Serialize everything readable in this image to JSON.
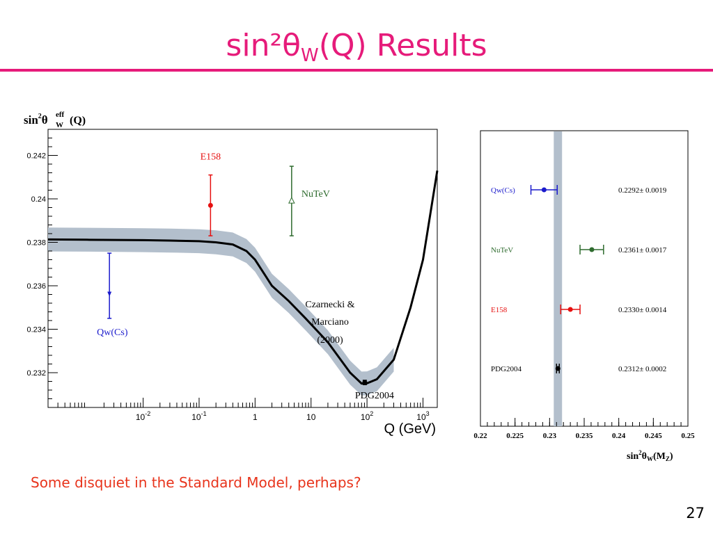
{
  "slide": {
    "title_prefix": "sin²θ",
    "title_sub": "W",
    "title_suffix": "(Q) Results",
    "subtitle": "Some disquiet in the Standard Model, perhaps?",
    "page_number": "27"
  },
  "colors": {
    "accent": "#e61b7a",
    "subtitle": "#e8341c",
    "band": "#b3bfcc",
    "qwcs": "#1a1acc",
    "nutev": "#2e6b2e",
    "e158": "#e61010",
    "pdg": "#000000"
  },
  "chart_data": [
    {
      "type": "line",
      "ylabel_main": "sin",
      "ylabel_sup": "2",
      "ylabel_theta": "θ",
      "ylabel_eff": "eff",
      "ylabel_W": "W",
      "ylabel_arg": "(Q)",
      "xlabel": "Q (GeV)",
      "xscale": "log",
      "xlim": [
        0.0002,
        1800
      ],
      "ylim": [
        0.2304,
        0.2432
      ],
      "yticks": [
        {
          "value": 0.242,
          "label": "0.242"
        },
        {
          "value": 0.24,
          "label": "0.24"
        },
        {
          "value": 0.238,
          "label": "0.238"
        },
        {
          "value": 0.236,
          "label": "0.236"
        },
        {
          "value": 0.234,
          "label": "0.234"
        },
        {
          "value": 0.232,
          "label": "0.232"
        }
      ],
      "xticks": [
        {
          "value": 0.01,
          "base": "10",
          "exp": "-2"
        },
        {
          "value": 0.1,
          "base": "10",
          "exp": "-1"
        },
        {
          "value": 1,
          "base": "1",
          "exp": ""
        },
        {
          "value": 10,
          "base": "10",
          "exp": ""
        },
        {
          "value": 100,
          "base": "10",
          "exp": "2"
        },
        {
          "value": 1000,
          "base": "10",
          "exp": "3"
        }
      ],
      "curve": {
        "name": "Czarnecki & Marciano (2000)",
        "label_lines": [
          "Czarnecki &",
          "Marciano",
          "(2000)"
        ],
        "x": [
          0.0002,
          0.001,
          0.01,
          0.03,
          0.1,
          0.2,
          0.4,
          0.7,
          1,
          1.5,
          2,
          4,
          8,
          20,
          50,
          80,
          100,
          150,
          300,
          600,
          1000,
          1800
        ],
        "y": [
          0.23813,
          0.23812,
          0.2381,
          0.23808,
          0.23805,
          0.238,
          0.2379,
          0.2376,
          0.2372,
          0.2365,
          0.236,
          0.2353,
          0.2345,
          0.2334,
          0.232,
          0.2315,
          0.23151,
          0.2317,
          0.2326,
          0.235,
          0.2372,
          0.2413
        ],
        "band_halfwidth": 0.00055
      },
      "measurements": [
        {
          "name": "Qw(Cs)",
          "x": 0.0025,
          "y": 0.2356,
          "err_low": 0.0011,
          "err_high": 0.0019,
          "marker": "arrow-down",
          "color": "#1a1acc",
          "label_position": "below"
        },
        {
          "name": "E158",
          "x": 0.16,
          "y": 0.2397,
          "err": 0.0014,
          "marker": "dot",
          "color": "#e61010",
          "label_position": "above"
        },
        {
          "name": "NuTeV",
          "x": 4.5,
          "y": 0.2399,
          "err": 0.0016,
          "marker": "open-triangle",
          "color": "#2e6b2e",
          "label_position": "right"
        },
        {
          "name": "PDG2004",
          "x": 91.19,
          "y": 0.23155,
          "err": 0.0001,
          "marker": "dot",
          "color": "#000000",
          "label_position": "below"
        }
      ]
    },
    {
      "type": "scatter",
      "xlabel_main": "sin",
      "xlabel_sup": "2",
      "xlabel_theta": "θ",
      "xlabel_W": "W",
      "xlabel_open": "(M",
      "xlabel_Z": "Z",
      "xlabel_close": ")",
      "xlim": [
        0.22,
        0.25
      ],
      "xticks": [
        {
          "value": 0.22,
          "label": "0.22"
        },
        {
          "value": 0.225,
          "label": "0.225"
        },
        {
          "value": 0.23,
          "label": "0.23"
        },
        {
          "value": 0.235,
          "label": "0.235"
        },
        {
          "value": 0.24,
          "label": "0.24"
        },
        {
          "value": 0.245,
          "label": "0.245"
        },
        {
          "value": 0.25,
          "label": "0.25"
        }
      ],
      "band": {
        "center": 0.2312,
        "halfwidth": 0.0006
      },
      "points": [
        {
          "name": "Qw(Cs)",
          "value": 0.2292,
          "err": 0.0019,
          "text": "0.2292± 0.0019",
          "color": "#1a1acc",
          "marker": "dot"
        },
        {
          "name": "NuTeV",
          "value": 0.2361,
          "err": 0.0017,
          "text": "0.2361± 0.0017",
          "color": "#2e6b2e",
          "marker": "dot"
        },
        {
          "name": "E158",
          "value": 0.233,
          "err": 0.0014,
          "text": "0.2330± 0.0014",
          "color": "#e61010",
          "marker": "dot"
        },
        {
          "name": "PDG2004",
          "value": 0.2312,
          "err": 0.0002,
          "text": "0.2312± 0.0002",
          "color": "#000000",
          "marker": "dot"
        }
      ]
    }
  ]
}
